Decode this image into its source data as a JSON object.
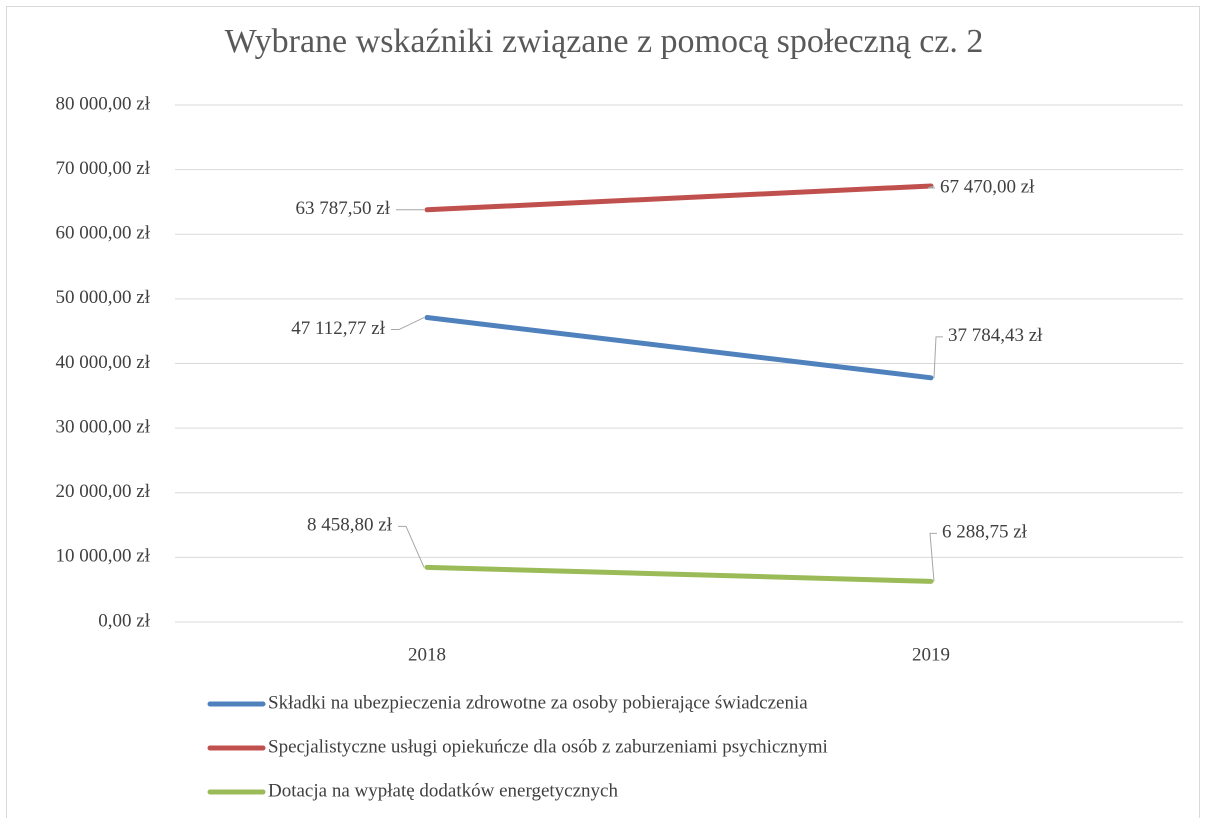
{
  "chart_data": {
    "type": "line",
    "title": "Wybrane wskaźniki związane z pomocą społeczną cz. 2",
    "categories": [
      "2018",
      "2019"
    ],
    "series": [
      {
        "name": "Składki na ubezpieczenia zdrowotne za osoby pobierające świadczenia",
        "color": "#4f81bd",
        "values": [
          47112.77,
          37784.43
        ],
        "value_labels": [
          "47 112,77 zł",
          "37 784,43 zł"
        ]
      },
      {
        "name": "Specjalistyczne usługi opiekuńcze dla osób z zaburzeniami psychicznymi",
        "color": "#c0504d",
        "values": [
          63787.5,
          67470
        ],
        "value_labels": [
          "63 787,50 zł",
          "67 470,00 zł"
        ]
      },
      {
        "name": "Dotacja na wypłatę dodatków energetycznych",
        "color": "#9bbb59",
        "values": [
          8458.8,
          6288.75
        ],
        "value_labels": [
          "8 458,80 zł",
          "6 288,75 zł"
        ]
      }
    ],
    "ylim": [
      0,
      80000
    ],
    "yticks": [
      {
        "value": 0,
        "label": "0,00 zł"
      },
      {
        "value": 10000,
        "label": "10 000,00 zł"
      },
      {
        "value": 20000,
        "label": "20 000,00 zł"
      },
      {
        "value": 30000,
        "label": "30 000,00 zł"
      },
      {
        "value": 40000,
        "label": "40 000,00 zł"
      },
      {
        "value": 50000,
        "label": "50 000,00 zł"
      },
      {
        "value": 60000,
        "label": "60 000,00 zł"
      },
      {
        "value": 70000,
        "label": "70 000,00 zł"
      },
      {
        "value": 80000,
        "label": "80 000,00 zł"
      }
    ],
    "grid": true,
    "legend": "bottom"
  }
}
